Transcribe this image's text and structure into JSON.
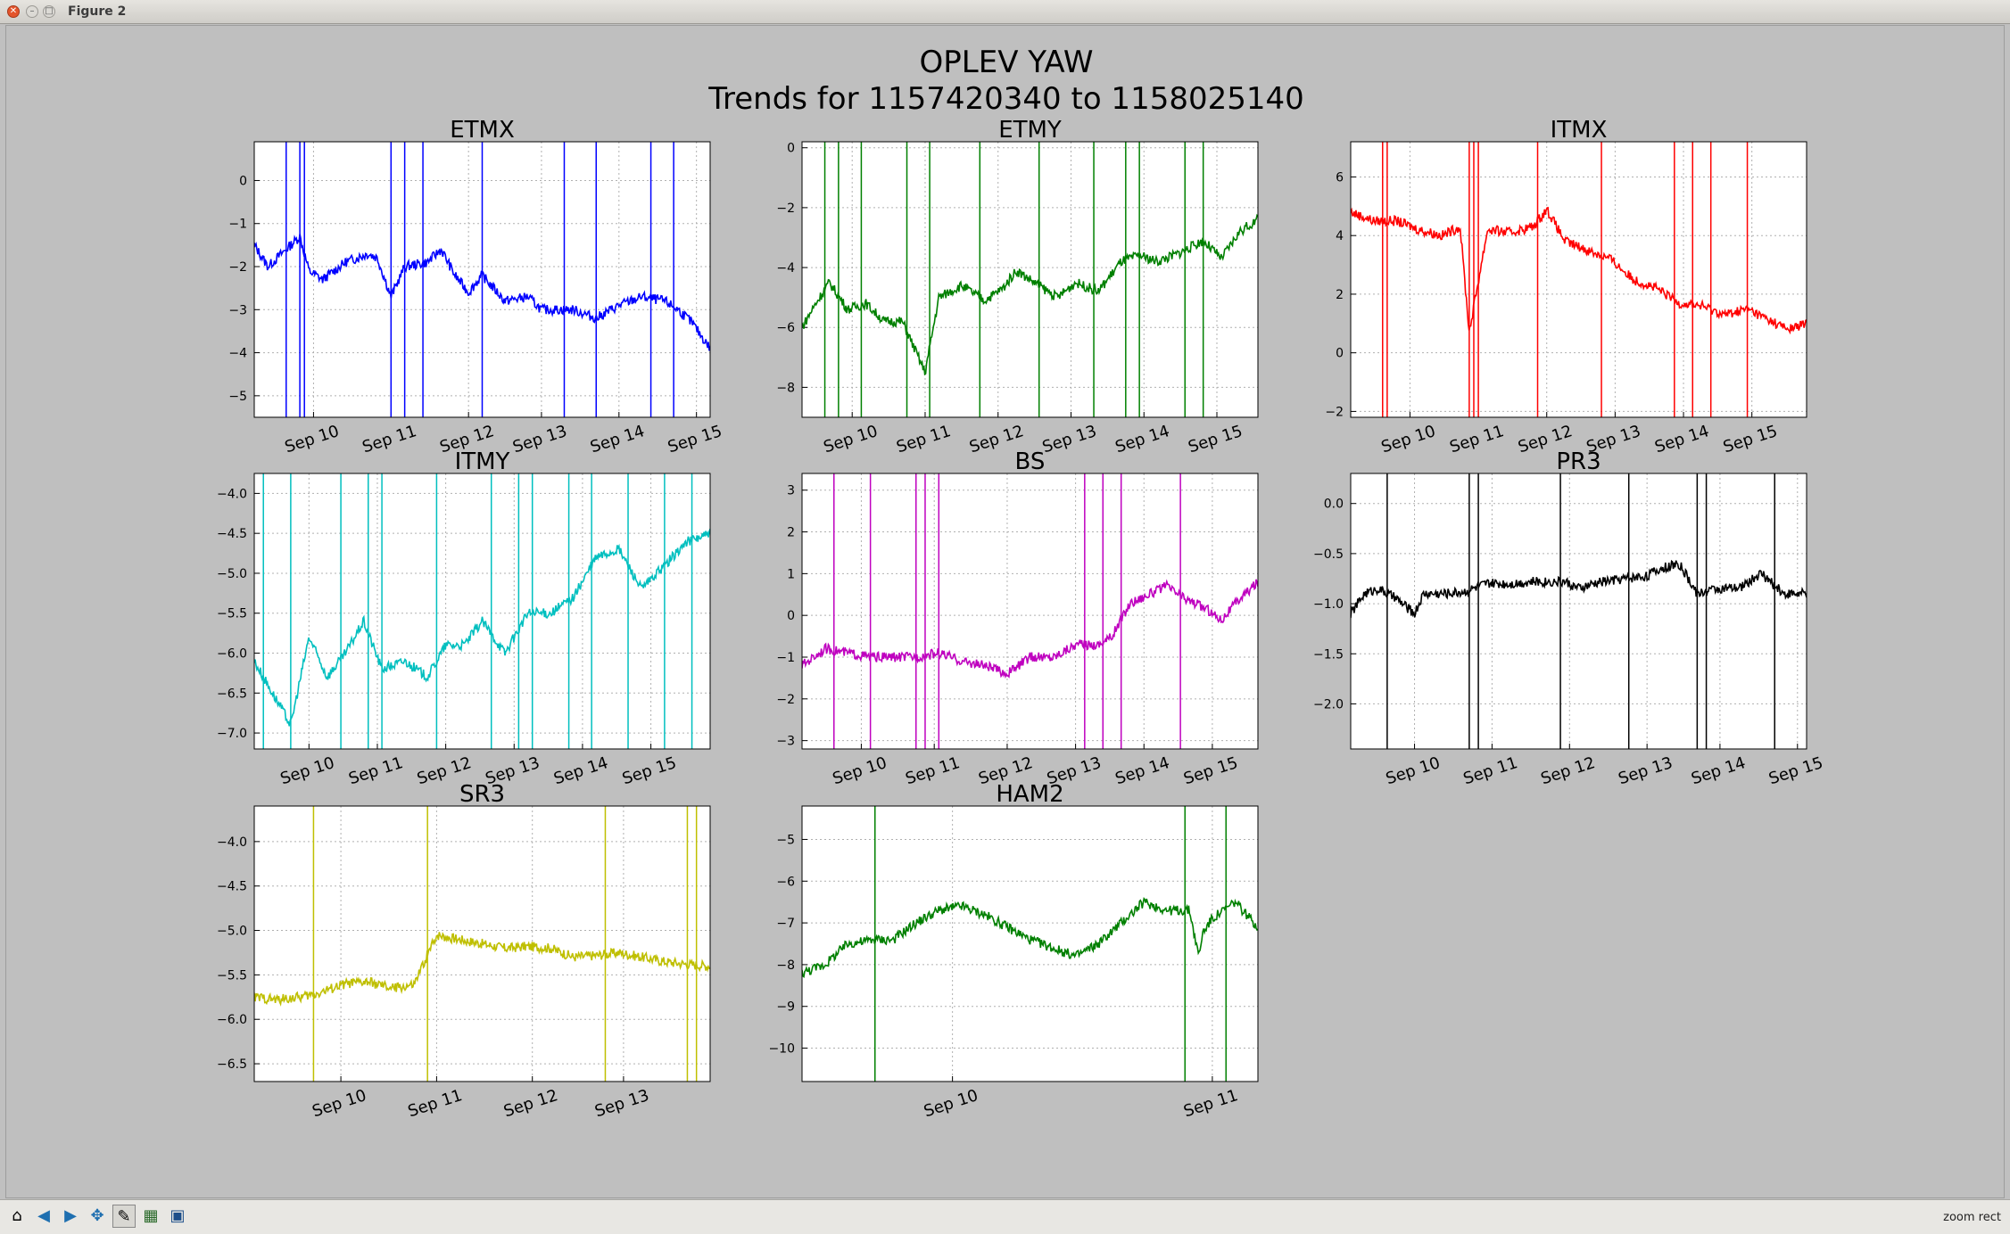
{
  "window": {
    "title": "Figure 2"
  },
  "figure": {
    "suptitle_line1": "OPLEV YAW",
    "suptitle_line2": "Trends for 1157420340 to 1158025140"
  },
  "status": {
    "mode": "zoom rect"
  },
  "toolbar": {
    "icons": [
      "home-icon",
      "back-icon",
      "forward-icon",
      "pan-icon",
      "zoom-icon",
      "configure-subplots-icon",
      "save-icon"
    ]
  },
  "chart_data": [
    {
      "type": "line",
      "title": "ETMX",
      "color": "#0000ff",
      "ylim": [
        -5.5,
        0.9
      ],
      "yticks": [
        "0",
        "−1",
        "−2",
        "−3",
        "−4",
        "−5"
      ],
      "ytick_values": [
        0,
        -1,
        -2,
        -3,
        -4,
        -5
      ],
      "xticks": [
        "Sep 10",
        "Sep 11",
        "Sep 12",
        "Sep 13",
        "Sep 14",
        "Sep 15"
      ],
      "xtick_values": [
        0.13,
        0.3,
        0.47,
        0.63,
        0.8,
        0.97
      ],
      "series": [
        {
          "x": [
            0,
            0.03,
            0.08,
            0.1,
            0.12,
            0.15,
            0.2,
            0.25,
            0.27,
            0.3,
            0.33,
            0.38,
            0.41,
            0.44,
            0.47,
            0.5,
            0.55,
            0.6,
            0.63,
            0.66,
            0.7,
            0.75,
            0.8,
            0.85,
            0.9,
            0.93,
            0.96,
            1
          ],
          "y": [
            -1.5,
            -2.0,
            -1.5,
            -1.3,
            -2.1,
            -2.3,
            -1.9,
            -1.7,
            -1.8,
            -2.7,
            -2.0,
            -1.9,
            -1.6,
            -2.2,
            -2.6,
            -2.2,
            -2.8,
            -2.7,
            -3.0,
            -3.0,
            -3.0,
            -3.2,
            -2.9,
            -2.7,
            -2.8,
            -3.0,
            -3.3,
            -3.9
          ]
        }
      ],
      "spikes": [
        0.07,
        0.1,
        0.11,
        0.3,
        0.33,
        0.37,
        0.5,
        0.68,
        0.75,
        0.87,
        0.92
      ]
    },
    {
      "type": "line",
      "title": "ETMY",
      "color": "#008000",
      "ylim": [
        -9,
        0.2
      ],
      "yticks": [
        "0",
        "−2",
        "−4",
        "−6",
        "−8"
      ],
      "ytick_values": [
        0,
        -2,
        -4,
        -6,
        -8
      ],
      "xticks": [
        "Sep 10",
        "Sep 11",
        "Sep 12",
        "Sep 13",
        "Sep 14",
        "Sep 15"
      ],
      "xtick_values": [
        0.11,
        0.27,
        0.43,
        0.59,
        0.75,
        0.91
      ],
      "series": [
        {
          "x": [
            0,
            0.03,
            0.06,
            0.1,
            0.14,
            0.18,
            0.22,
            0.27,
            0.3,
            0.35,
            0.4,
            0.44,
            0.47,
            0.52,
            0.56,
            0.6,
            0.65,
            0.7,
            0.74,
            0.78,
            0.83,
            0.88,
            0.92,
            0.96,
            1
          ],
          "y": [
            -6,
            -5.2,
            -4.5,
            -5.4,
            -5.2,
            -5.8,
            -5.8,
            -7.5,
            -5.0,
            -4.6,
            -5.1,
            -4.7,
            -4.1,
            -4.6,
            -5.0,
            -4.5,
            -4.8,
            -3.8,
            -3.6,
            -3.8,
            -3.5,
            -3.1,
            -3.7,
            -2.8,
            -2.4
          ]
        }
      ],
      "spikes": [
        0.05,
        0.08,
        0.13,
        0.23,
        0.28,
        0.39,
        0.52,
        0.64,
        0.71,
        0.74,
        0.84,
        0.88
      ]
    },
    {
      "type": "line",
      "title": "ITMX",
      "color": "#ff0000",
      "ylim": [
        -2.2,
        7.2
      ],
      "yticks": [
        "6",
        "4",
        "2",
        "0",
        "−2"
      ],
      "ytick_values": [
        6,
        4,
        2,
        0,
        -2
      ],
      "xticks": [
        "Sep 10",
        "Sep 11",
        "Sep 12",
        "Sep 13",
        "Sep 14",
        "Sep 15"
      ],
      "xtick_values": [
        0.13,
        0.28,
        0.43,
        0.58,
        0.73,
        0.88
      ],
      "series": [
        {
          "x": [
            0,
            0.05,
            0.1,
            0.15,
            0.2,
            0.24,
            0.26,
            0.3,
            0.35,
            0.4,
            0.43,
            0.47,
            0.52,
            0.57,
            0.62,
            0.67,
            0.72,
            0.77,
            0.82,
            0.87,
            0.92,
            0.96,
            1
          ],
          "y": [
            4.8,
            4.5,
            4.5,
            4.2,
            4.0,
            4.3,
            0.7,
            4.2,
            4.1,
            4.3,
            4.9,
            3.8,
            3.5,
            3.2,
            2.5,
            2.2,
            1.7,
            1.6,
            1.3,
            1.5,
            1.1,
            0.8,
            1.0
          ]
        }
      ],
      "spikes": [
        0.07,
        0.08,
        0.26,
        0.27,
        0.28,
        0.41,
        0.55,
        0.71,
        0.75,
        0.79,
        0.87
      ]
    },
    {
      "type": "line",
      "title": "ITMY",
      "color": "#00bfbf",
      "ylim": [
        -7.2,
        -3.75
      ],
      "yticks": [
        "−4.0",
        "−4.5",
        "−5.0",
        "−5.5",
        "−6.0",
        "−6.5",
        "−7.0"
      ],
      "ytick_values": [
        -4,
        -4.5,
        -5,
        -5.5,
        -6,
        -6.5,
        -7
      ],
      "xticks": [
        "Sep 10",
        "Sep 11",
        "Sep 12",
        "Sep 13",
        "Sep 14",
        "Sep 15"
      ],
      "xtick_values": [
        0.12,
        0.27,
        0.42,
        0.57,
        0.72,
        0.87
      ],
      "series": [
        {
          "x": [
            0,
            0.04,
            0.08,
            0.12,
            0.16,
            0.2,
            0.24,
            0.28,
            0.33,
            0.38,
            0.42,
            0.46,
            0.5,
            0.55,
            0.6,
            0.65,
            0.7,
            0.75,
            0.8,
            0.85,
            0.9,
            0.95,
            1
          ],
          "y": [
            -6.1,
            -6.5,
            -6.9,
            -5.8,
            -6.3,
            -6.0,
            -5.6,
            -6.2,
            -6.1,
            -6.3,
            -5.9,
            -5.9,
            -5.6,
            -6.0,
            -5.5,
            -5.5,
            -5.3,
            -4.8,
            -4.7,
            -5.2,
            -4.9,
            -4.6,
            -4.5
          ]
        }
      ],
      "spikes": [
        0.02,
        0.08,
        0.19,
        0.25,
        0.28,
        0.4,
        0.52,
        0.58,
        0.61,
        0.69,
        0.74,
        0.82,
        0.9,
        0.96
      ]
    },
    {
      "type": "line",
      "title": "BS",
      "color": "#bf00bf",
      "ylim": [
        -3.2,
        3.4
      ],
      "yticks": [
        "3",
        "2",
        "1",
        "0",
        "−1",
        "−2",
        "−3"
      ],
      "ytick_values": [
        3,
        2,
        1,
        0,
        -1,
        -2,
        -3
      ],
      "xticks": [
        "Sep 10",
        "Sep 11",
        "Sep 12",
        "Sep 13",
        "Sep 14",
        "Sep 15"
      ],
      "xtick_values": [
        0.13,
        0.29,
        0.45,
        0.6,
        0.75,
        0.9
      ],
      "series": [
        {
          "x": [
            0,
            0.05,
            0.1,
            0.15,
            0.2,
            0.25,
            0.3,
            0.35,
            0.4,
            0.45,
            0.5,
            0.55,
            0.6,
            0.65,
            0.68,
            0.72,
            0.76,
            0.8,
            0.84,
            0.88,
            0.92,
            0.96,
            1
          ],
          "y": [
            -1.2,
            -0.8,
            -0.9,
            -1.0,
            -1.0,
            -1.0,
            -0.9,
            -1.1,
            -1.2,
            -1.4,
            -1.0,
            -1.0,
            -0.7,
            -0.7,
            -0.5,
            0.3,
            0.5,
            0.7,
            0.4,
            0.2,
            -0.1,
            0.4,
            0.8
          ]
        }
      ],
      "spikes": [
        0.07,
        0.15,
        0.25,
        0.27,
        0.3,
        0.62,
        0.66,
        0.7,
        0.83
      ]
    },
    {
      "type": "line",
      "title": "PR3",
      "color": "#000000",
      "ylim": [
        -2.45,
        0.3
      ],
      "yticks": [
        "0.0",
        "−0.5",
        "−1.0",
        "−1.5",
        "−2.0"
      ],
      "ytick_values": [
        0,
        -0.5,
        -1,
        -1.5,
        -2
      ],
      "xticks": [
        "Sep 10",
        "Sep 11",
        "Sep 12",
        "Sep 13",
        "Sep 14",
        "Sep 15"
      ],
      "xtick_values": [
        0.14,
        0.31,
        0.48,
        0.65,
        0.81,
        0.98
      ],
      "series": [
        {
          "x": [
            0,
            0.03,
            0.06,
            0.1,
            0.14,
            0.16,
            0.2,
            0.25,
            0.3,
            0.35,
            0.4,
            0.47,
            0.5,
            0.55,
            0.6,
            0.65,
            0.68,
            0.72,
            0.76,
            0.8,
            0.85,
            0.9,
            0.95,
            1
          ],
          "y": [
            -1.1,
            -0.9,
            -0.85,
            -0.95,
            -1.1,
            -0.9,
            -0.9,
            -0.88,
            -0.8,
            -0.8,
            -0.78,
            -0.78,
            -0.85,
            -0.78,
            -0.75,
            -0.72,
            -0.65,
            -0.6,
            -0.9,
            -0.85,
            -0.85,
            -0.7,
            -0.9,
            -0.9
          ]
        }
      ],
      "spikes": [
        0.08,
        0.26,
        0.28,
        0.46,
        0.61,
        0.76,
        0.78,
        0.93
      ]
    },
    {
      "type": "line",
      "title": "SR3",
      "color": "#bfbf00",
      "ylim": [
        -6.7,
        -3.6
      ],
      "yticks": [
        "−4.0",
        "−4.5",
        "−5.0",
        "−5.5",
        "−6.0",
        "−6.5"
      ],
      "ytick_values": [
        -4,
        -4.5,
        -5,
        -5.5,
        -6,
        -6.5
      ],
      "xticks": [
        "Sep 10",
        "Sep 11",
        "Sep 12",
        "Sep 13"
      ],
      "xtick_values": [
        0.19,
        0.4,
        0.61,
        0.81
      ],
      "series": [
        {
          "x": [
            0,
            0.05,
            0.1,
            0.13,
            0.2,
            0.25,
            0.3,
            0.35,
            0.4,
            0.45,
            0.5,
            0.55,
            0.6,
            0.65,
            0.7,
            0.75,
            0.8,
            0.85,
            0.9,
            0.95,
            1
          ],
          "y": [
            -5.75,
            -5.78,
            -5.75,
            -5.72,
            -5.6,
            -5.58,
            -5.65,
            -5.62,
            -5.05,
            -5.1,
            -5.15,
            -5.2,
            -5.18,
            -5.2,
            -5.3,
            -5.28,
            -5.25,
            -5.3,
            -5.35,
            -5.38,
            -5.4
          ]
        }
      ],
      "spikes": [
        0.13,
        0.38,
        0.77,
        0.95,
        0.97
      ]
    },
    {
      "type": "line",
      "title": "HAM2",
      "color": "#008000",
      "ylim": [
        -10.8,
        -4.2
      ],
      "yticks": [
        "−5",
        "−6",
        "−7",
        "−8",
        "−9",
        "−10"
      ],
      "ytick_values": [
        -5,
        -6,
        -7,
        -8,
        -9,
        -10
      ],
      "xticks": [
        "Sep 10",
        "Sep 11"
      ],
      "xtick_values": [
        0.33,
        0.9
      ],
      "series": [
        {
          "x": [
            0,
            0.05,
            0.1,
            0.16,
            0.2,
            0.25,
            0.3,
            0.35,
            0.4,
            0.45,
            0.5,
            0.55,
            0.6,
            0.65,
            0.7,
            0.75,
            0.8,
            0.85,
            0.87,
            0.88,
            0.9,
            0.95,
            1
          ],
          "y": [
            -8.2,
            -8.0,
            -7.5,
            -7.4,
            -7.4,
            -7.0,
            -6.7,
            -6.6,
            -6.8,
            -7.1,
            -7.4,
            -7.6,
            -7.8,
            -7.5,
            -7.0,
            -6.5,
            -6.7,
            -6.7,
            -7.8,
            -7.2,
            -6.9,
            -6.5,
            -7.1
          ]
        }
      ],
      "spikes": [
        0.16,
        0.84,
        0.93
      ]
    }
  ]
}
